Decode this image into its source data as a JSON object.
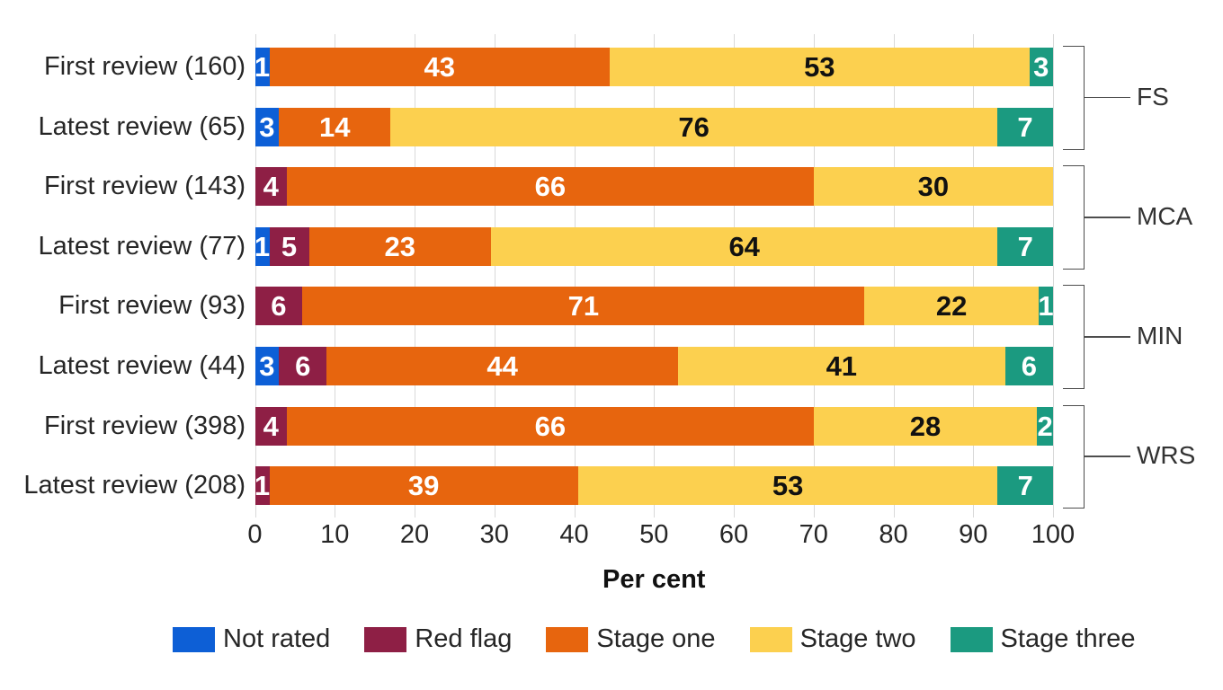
{
  "chart_data": {
    "type": "bar",
    "orientation": "horizontal-stacked",
    "title": "",
    "xlabel": "Per cent",
    "ylabel": "",
    "xlim": [
      0,
      100
    ],
    "x_ticks": [
      0,
      10,
      20,
      30,
      40,
      50,
      60,
      70,
      80,
      90,
      100
    ],
    "grid": "vertical",
    "legend_position": "bottom",
    "unit": "percent",
    "series": [
      {
        "name": "Not rated",
        "color": "#0d5fd6",
        "label_color": "#ffffff"
      },
      {
        "name": "Red flag",
        "color": "#8e1f45",
        "label_color": "#ffffff"
      },
      {
        "name": "Stage one",
        "color": "#e7650e",
        "label_color": "#ffffff"
      },
      {
        "name": "Stage two",
        "color": "#fcd04f",
        "label_color": "#111111"
      },
      {
        "name": "Stage three",
        "color": "#1b9a80",
        "label_color": "#ffffff"
      }
    ],
    "groups": [
      {
        "label": "FS",
        "rows": [
          {
            "label": "First review (160)",
            "segments": [
              {
                "series": "Not rated",
                "value": 1
              },
              {
                "series": "Stage one",
                "value": 43
              },
              {
                "series": "Stage two",
                "value": 53
              },
              {
                "series": "Stage three",
                "value": 3
              }
            ]
          },
          {
            "label": "Latest review (65)",
            "segments": [
              {
                "series": "Not rated",
                "value": 3
              },
              {
                "series": "Stage one",
                "value": 14
              },
              {
                "series": "Stage two",
                "value": 76
              },
              {
                "series": "Stage three",
                "value": 7
              }
            ]
          }
        ]
      },
      {
        "label": "MCA",
        "rows": [
          {
            "label": "First review (143)",
            "segments": [
              {
                "series": "Red flag",
                "value": 4
              },
              {
                "series": "Stage one",
                "value": 66
              },
              {
                "series": "Stage two",
                "value": 30
              }
            ]
          },
          {
            "label": "Latest review (77)",
            "segments": [
              {
                "series": "Not rated",
                "value": 1
              },
              {
                "series": "Red flag",
                "value": 5
              },
              {
                "series": "Stage one",
                "value": 23
              },
              {
                "series": "Stage two",
                "value": 64
              },
              {
                "series": "Stage three",
                "value": 7
              }
            ]
          }
        ]
      },
      {
        "label": "MIN",
        "rows": [
          {
            "label": "First review (93)",
            "segments": [
              {
                "series": "Red flag",
                "value": 6
              },
              {
                "series": "Stage one",
                "value": 71
              },
              {
                "series": "Stage two",
                "value": 22
              },
              {
                "series": "Stage three",
                "value": 1
              }
            ]
          },
          {
            "label": "Latest review (44)",
            "segments": [
              {
                "series": "Not rated",
                "value": 3
              },
              {
                "series": "Red flag",
                "value": 6
              },
              {
                "series": "Stage one",
                "value": 44
              },
              {
                "series": "Stage two",
                "value": 41
              },
              {
                "series": "Stage three",
                "value": 6
              }
            ]
          }
        ]
      },
      {
        "label": "WRS",
        "rows": [
          {
            "label": "First review (398)",
            "segments": [
              {
                "series": "Red flag",
                "value": 4
              },
              {
                "series": "Stage one",
                "value": 66
              },
              {
                "series": "Stage two",
                "value": 28
              },
              {
                "series": "Stage three",
                "value": 2
              }
            ]
          },
          {
            "label": "Latest review (208)",
            "segments": [
              {
                "series": "Red flag",
                "value": 1
              },
              {
                "series": "Stage one",
                "value": 39
              },
              {
                "series": "Stage two",
                "value": 53
              },
              {
                "series": "Stage three",
                "value": 7
              }
            ]
          }
        ]
      }
    ]
  }
}
